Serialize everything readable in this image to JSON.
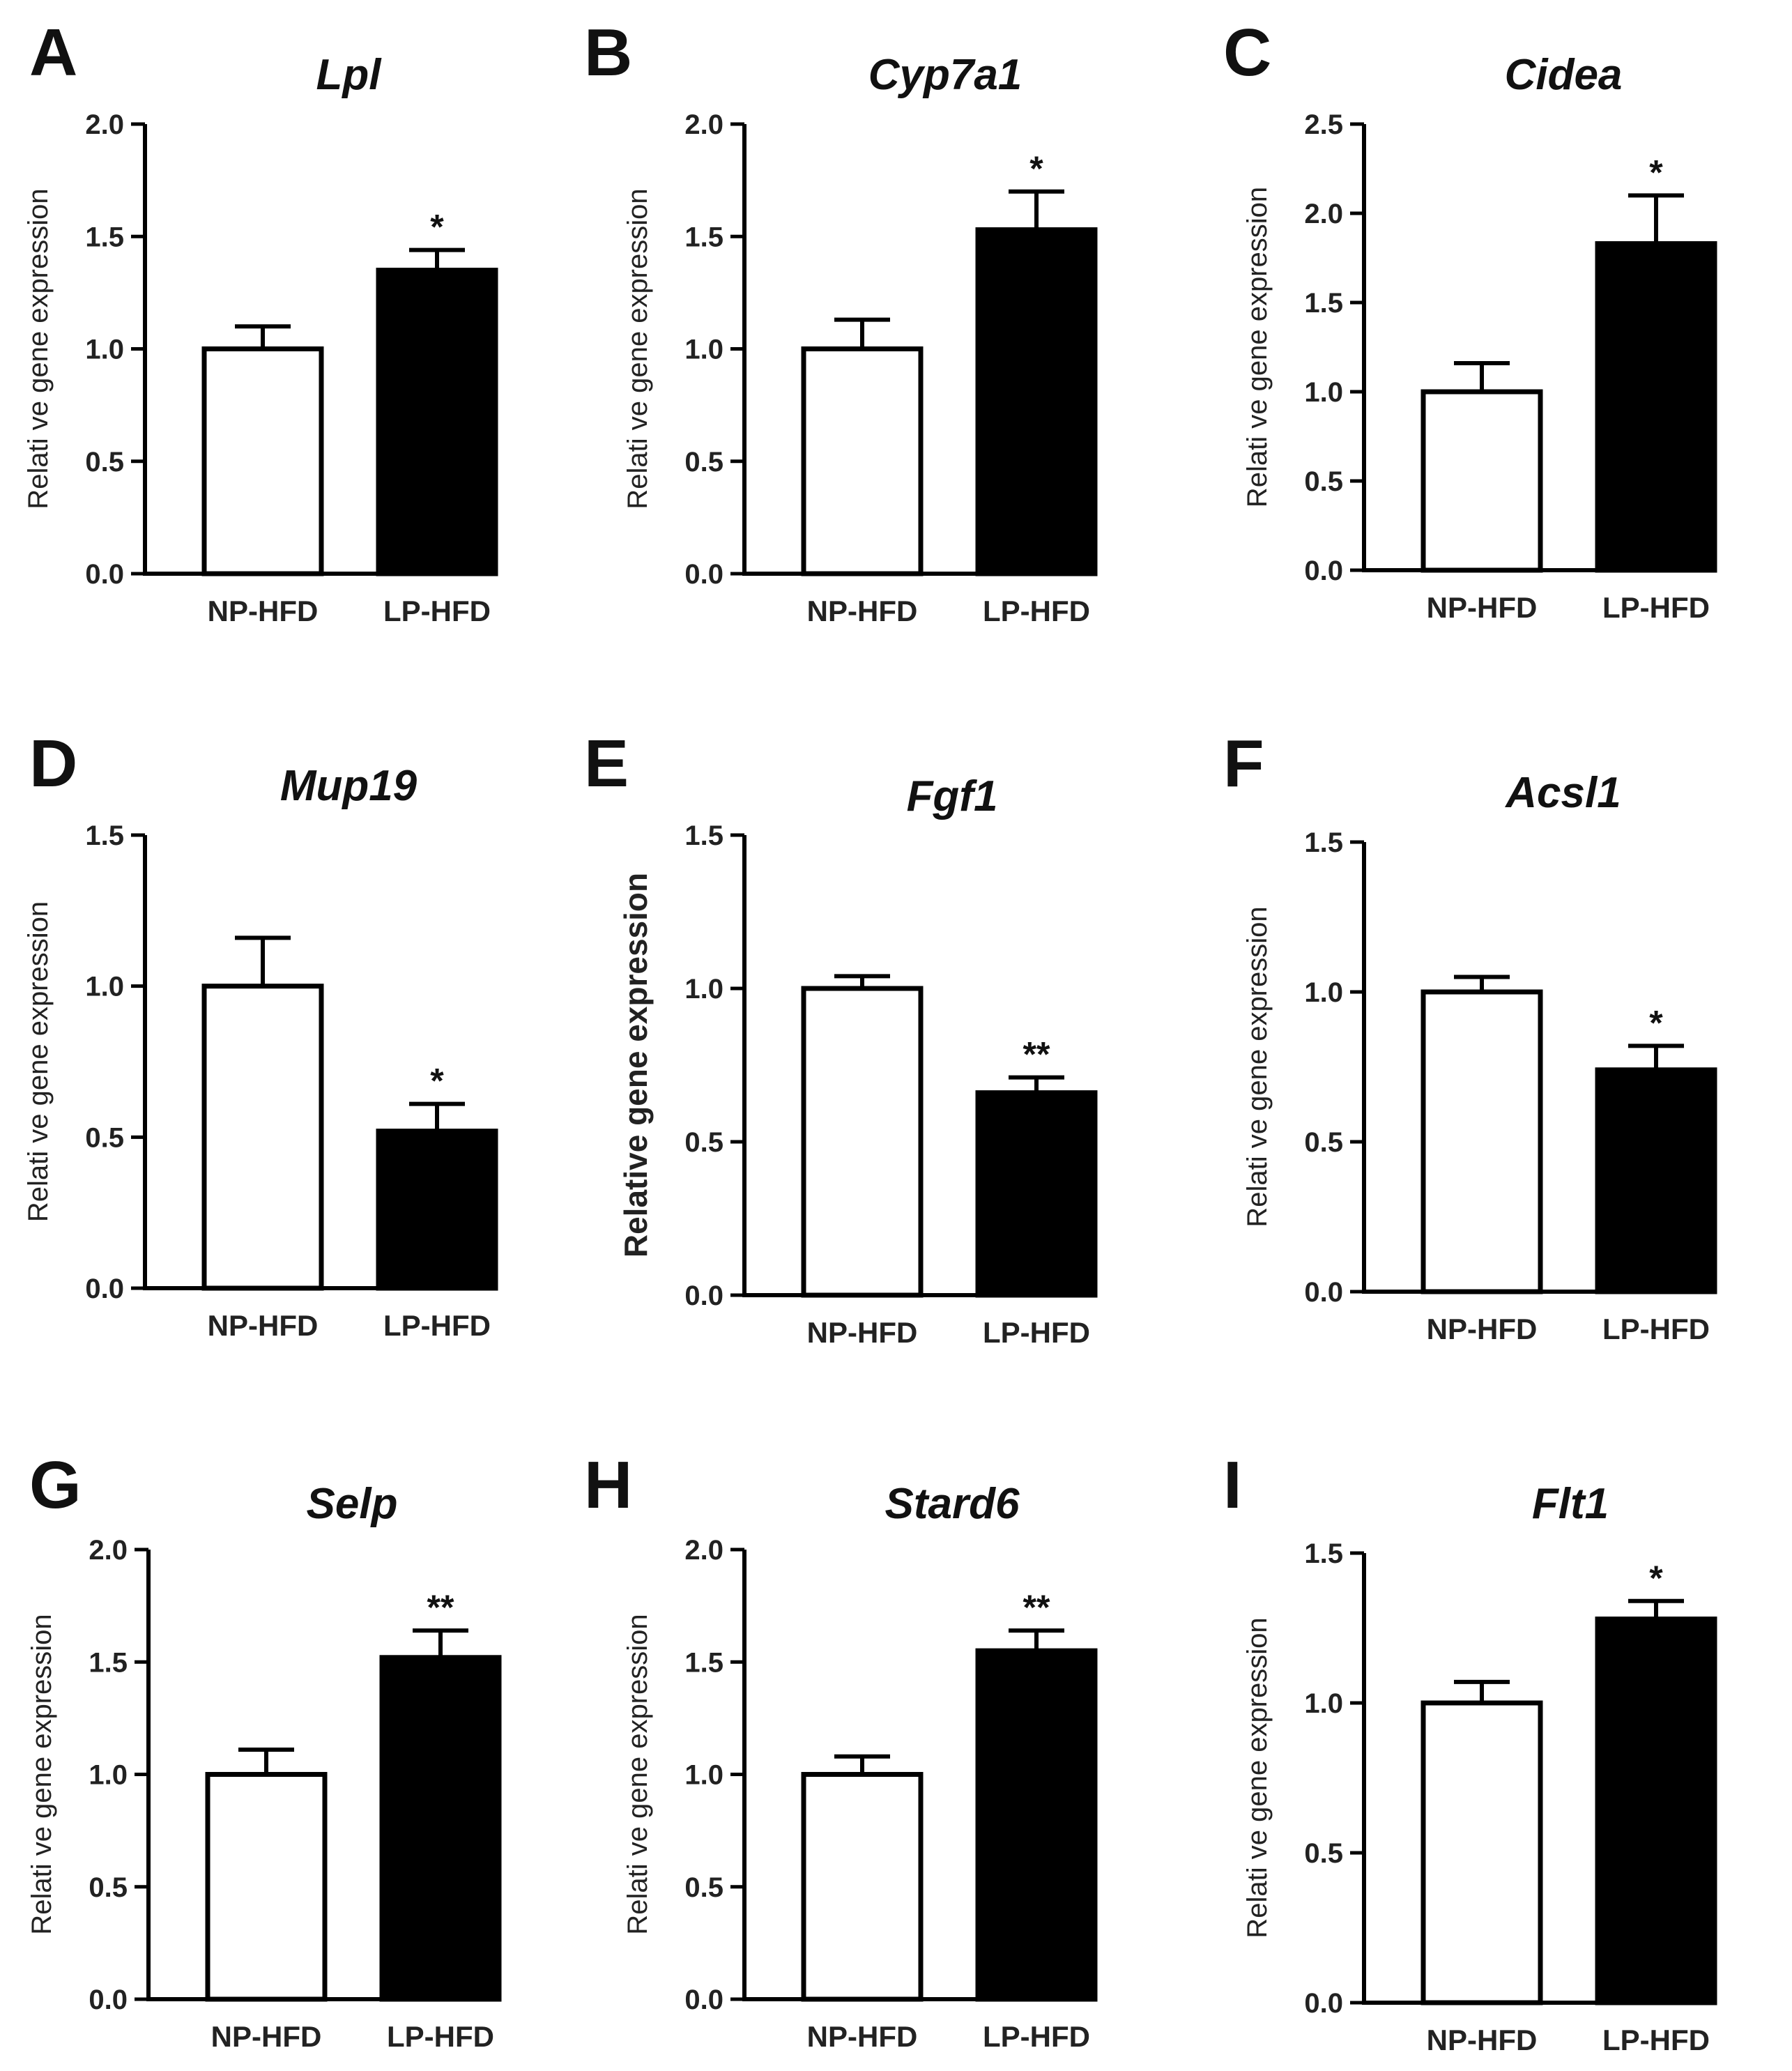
{
  "figure": {
    "categories": [
      "NP-HFD",
      "LP-HFD"
    ]
  },
  "colors": {
    "np_fill": "#ffffff",
    "lp_fill": "#000000",
    "stroke": "#000000"
  },
  "chart_data": [
    {
      "type": "bar",
      "panel": "A",
      "title": "Lpl",
      "ylabel": "Relati ve gene expression",
      "categories": [
        "NP-HFD",
        "LP-HFD"
      ],
      "values": [
        1.0,
        1.35
      ],
      "errors": [
        0.1,
        0.09
      ],
      "significance": [
        "",
        "*"
      ],
      "ylim": [
        0,
        2.0
      ],
      "yticks": [
        "0.0",
        "0.5",
        "1.0",
        "1.5",
        "2.0"
      ]
    },
    {
      "type": "bar",
      "panel": "B",
      "title": "Cyp7a1",
      "ylabel": "Relati ve gene expression",
      "categories": [
        "NP-HFD",
        "LP-HFD"
      ],
      "values": [
        1.0,
        1.53
      ],
      "errors": [
        0.13,
        0.17
      ],
      "significance": [
        "",
        "*"
      ],
      "ylim": [
        0,
        2.0
      ],
      "yticks": [
        "0.0",
        "0.5",
        "1.0",
        "1.5",
        "2.0"
      ]
    },
    {
      "type": "bar",
      "panel": "C",
      "title": "Cidea",
      "ylabel": "Relati ve gene expression",
      "categories": [
        "NP-HFD",
        "LP-HFD"
      ],
      "values": [
        1.0,
        1.83
      ],
      "errors": [
        0.16,
        0.27
      ],
      "significance": [
        "",
        "*"
      ],
      "ylim": [
        0,
        2.5
      ],
      "yticks": [
        "0.0",
        "0.5",
        "1.0",
        "1.5",
        "2.0",
        "2.5"
      ]
    },
    {
      "type": "bar",
      "panel": "D",
      "title": "Mup19",
      "ylabel": "Relati ve gene expression",
      "categories": [
        "NP-HFD",
        "LP-HFD"
      ],
      "values": [
        1.0,
        0.52
      ],
      "errors": [
        0.16,
        0.09
      ],
      "significance": [
        "",
        "*"
      ],
      "ylim": [
        0,
        1.5
      ],
      "yticks": [
        "0.0",
        "0.5",
        "1.0",
        "1.5"
      ]
    },
    {
      "type": "bar",
      "panel": "E",
      "title": "Fgf1",
      "ylabel": "Relative gene expression",
      "categories": [
        "NP-HFD",
        "LP-HFD"
      ],
      "values": [
        1.0,
        0.66
      ],
      "errors": [
        0.04,
        0.05
      ],
      "significance": [
        "",
        "**"
      ],
      "ylim": [
        0,
        1.5
      ],
      "yticks": [
        "0.0",
        "0.5",
        "1.0",
        "1.5"
      ]
    },
    {
      "type": "bar",
      "panel": "F",
      "title": "Acsl1",
      "ylabel": "Relati ve gene expression",
      "categories": [
        "NP-HFD",
        "LP-HFD"
      ],
      "values": [
        1.0,
        0.74
      ],
      "errors": [
        0.05,
        0.08
      ],
      "significance": [
        "",
        "*"
      ],
      "ylim": [
        0,
        1.5
      ],
      "yticks": [
        "0.0",
        "0.5",
        "1.0",
        "1.5"
      ]
    },
    {
      "type": "bar",
      "panel": "G",
      "title": "Selp",
      "ylabel": "Relati ve gene expression",
      "categories": [
        "NP-HFD",
        "LP-HFD"
      ],
      "values": [
        1.0,
        1.52
      ],
      "errors": [
        0.11,
        0.12
      ],
      "significance": [
        "",
        "**"
      ],
      "ylim": [
        0,
        2.0
      ],
      "yticks": [
        "0.0",
        "0.5",
        "1.0",
        "1.5",
        "2.0"
      ]
    },
    {
      "type": "bar",
      "panel": "H",
      "title": "Stard6",
      "ylabel": "Relati ve gene expression",
      "categories": [
        "NP-HFD",
        "LP-HFD"
      ],
      "values": [
        1.0,
        1.55
      ],
      "errors": [
        0.08,
        0.09
      ],
      "significance": [
        "",
        "**"
      ],
      "ylim": [
        0,
        2.0
      ],
      "yticks": [
        "0.0",
        "0.5",
        "1.0",
        "1.5",
        "2.0"
      ]
    },
    {
      "type": "bar",
      "panel": "I",
      "title": "Flt1",
      "ylabel": "Relati ve gene expression",
      "categories": [
        "NP-HFD",
        "LP-HFD"
      ],
      "values": [
        1.0,
        1.28
      ],
      "errors": [
        0.07,
        0.06
      ],
      "significance": [
        "",
        "*"
      ],
      "ylim": [
        0,
        1.5
      ],
      "yticks": [
        "0.0",
        "0.5",
        "1.0",
        "1.5"
      ]
    }
  ]
}
